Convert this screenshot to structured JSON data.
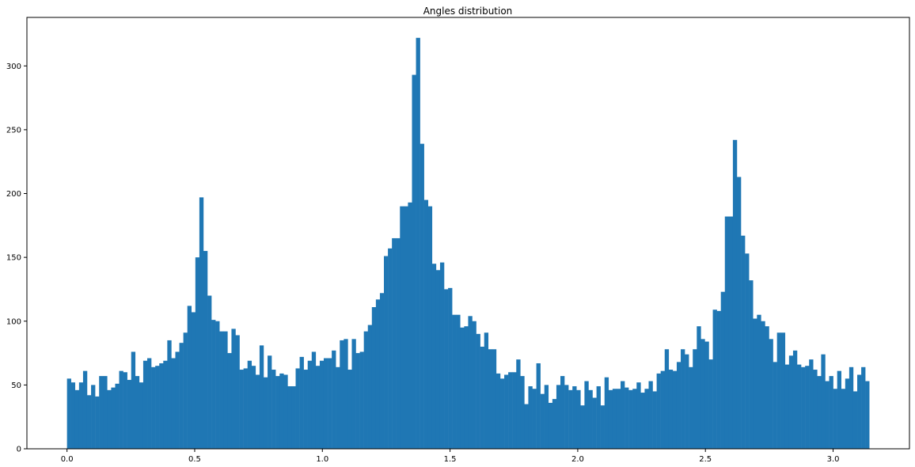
{
  "chart_data": {
    "type": "bar",
    "title": "Angles distribution",
    "xlabel": "",
    "ylabel": "",
    "xlim": [
      -0.157,
      3.299
    ],
    "ylim": [
      0,
      338
    ],
    "bin_start": 0.0,
    "bin_width": 0.015708,
    "bar_color": "#1f77b4",
    "grid": false,
    "x_ticks": [
      0.0,
      0.5,
      1.0,
      1.5,
      2.0,
      2.5,
      3.0
    ],
    "x_tick_labels": [
      "0.0",
      "0.5",
      "1.0",
      "1.5",
      "2.0",
      "2.5",
      "3.0"
    ],
    "y_ticks": [
      0,
      50,
      100,
      150,
      200,
      250,
      300
    ],
    "y_tick_labels": [
      "0",
      "50",
      "100",
      "150",
      "200",
      "250",
      "300"
    ],
    "values": [
      55,
      52,
      46,
      52,
      61,
      42,
      50,
      41,
      57,
      57,
      46,
      48,
      51,
      61,
      60,
      54,
      76,
      57,
      52,
      69,
      71,
      64,
      65,
      67,
      69,
      85,
      71,
      76,
      83,
      91,
      112,
      107,
      150,
      197,
      155,
      120,
      101,
      100,
      92,
      92,
      75,
      94,
      89,
      62,
      63,
      69,
      65,
      58,
      81,
      56,
      73,
      62,
      57,
      59,
      58,
      49,
      49,
      63,
      72,
      62,
      69,
      76,
      65,
      69,
      71,
      71,
      77,
      64,
      85,
      86,
      62,
      86,
      75,
      76,
      92,
      97,
      111,
      117,
      122,
      151,
      157,
      165,
      165,
      190,
      190,
      193,
      293,
      322,
      239,
      195,
      190,
      145,
      140,
      146,
      125,
      126,
      105,
      105,
      95,
      96,
      104,
      100,
      90,
      80,
      91,
      78,
      78,
      59,
      55,
      58,
      60,
      60,
      70,
      57,
      35,
      49,
      47,
      67,
      43,
      50,
      36,
      39,
      50,
      57,
      50,
      46,
      49,
      46,
      34,
      53,
      46,
      40,
      49,
      34,
      56,
      46,
      47,
      47,
      53,
      48,
      46,
      47,
      52,
      44,
      47,
      53,
      45,
      59,
      61,
      78,
      62,
      61,
      68,
      78,
      74,
      64,
      78,
      96,
      86,
      84,
      70,
      109,
      108,
      123,
      182,
      182,
      242,
      213,
      167,
      153,
      132,
      102,
      105,
      100,
      96,
      86,
      68,
      91,
      91,
      66,
      73,
      77,
      66,
      64,
      65,
      70,
      62,
      57,
      74,
      53,
      57,
      47,
      61,
      47,
      55,
      64,
      45,
      58,
      64,
      53
    ]
  }
}
